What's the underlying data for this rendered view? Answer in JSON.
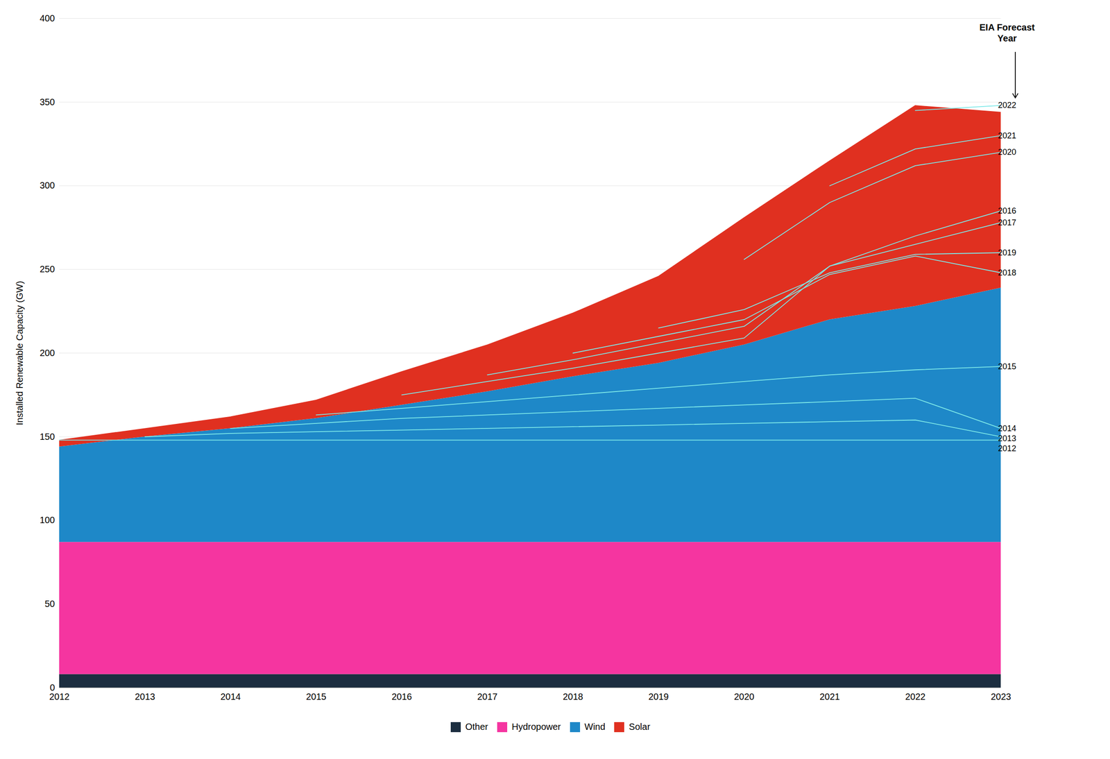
{
  "chart_data": {
    "type": "area",
    "stacked": true,
    "x": [
      2012,
      2013,
      2014,
      2015,
      2016,
      2017,
      2018,
      2019,
      2020,
      2021,
      2022,
      2023
    ],
    "series": [
      {
        "name": "Other",
        "type": "area",
        "color": "#1c2e40",
        "values": [
          8,
          8,
          8,
          8,
          8,
          8,
          8,
          8,
          8,
          8,
          8,
          8
        ]
      },
      {
        "name": "Hydropower",
        "type": "area",
        "color": "#f535a0",
        "values": [
          79,
          79,
          79,
          79,
          79,
          79,
          79,
          79,
          79,
          79,
          79,
          79
        ]
      },
      {
        "name": "Wind",
        "type": "area",
        "color": "#1e88c8",
        "values": [
          57,
          63,
          68,
          74,
          82,
          90,
          99,
          107,
          118,
          133,
          141,
          152
        ]
      },
      {
        "name": "Solar",
        "type": "area",
        "color": "#e03020",
        "values": [
          4,
          5,
          7,
          11,
          20,
          28,
          38,
          52,
          76,
          95,
          120,
          105
        ]
      },
      {
        "name": "2012",
        "type": "line",
        "color": "#7de8e8",
        "values": [
          148,
          148,
          148,
          148,
          148,
          148,
          148,
          148,
          148,
          148,
          148,
          148
        ]
      },
      {
        "name": "2013",
        "type": "line",
        "color": "#7de8e8",
        "values": [
          null,
          150,
          152,
          153,
          154,
          155,
          156,
          157,
          158,
          159,
          160,
          150
        ]
      },
      {
        "name": "2014",
        "type": "line",
        "color": "#7de8e8",
        "values": [
          null,
          null,
          155,
          158,
          161,
          163,
          165,
          167,
          169,
          171,
          173,
          155
        ]
      },
      {
        "name": "2015",
        "type": "line",
        "color": "#7de8e8",
        "values": [
          null,
          null,
          null,
          163,
          167,
          171,
          175,
          179,
          183,
          187,
          190,
          192
        ]
      },
      {
        "name": "2016",
        "type": "line",
        "color": "#7de8e8",
        "values": [
          null,
          null,
          null,
          null,
          175,
          183,
          191,
          200,
          209,
          252,
          270,
          285
        ]
      },
      {
        "name": "2017",
        "type": "line",
        "color": "#7de8e8",
        "values": [
          null,
          null,
          null,
          null,
          null,
          187,
          196,
          206,
          216,
          252,
          265,
          278
        ]
      },
      {
        "name": "2018",
        "type": "line",
        "color": "#7de8e8",
        "values": [
          null,
          null,
          null,
          null,
          null,
          null,
          200,
          210,
          220,
          247,
          258,
          248
        ]
      },
      {
        "name": "2019",
        "type": "line",
        "color": "#7de8e8",
        "values": [
          null,
          null,
          null,
          null,
          null,
          null,
          null,
          215,
          226,
          248,
          259,
          260
        ]
      },
      {
        "name": "2020",
        "type": "line",
        "color": "#7de8e8",
        "values": [
          null,
          null,
          null,
          null,
          null,
          null,
          null,
          null,
          256,
          290,
          312,
          320
        ]
      },
      {
        "name": "2021",
        "type": "line",
        "color": "#7de8e8",
        "values": [
          null,
          null,
          null,
          null,
          null,
          null,
          null,
          null,
          null,
          300,
          322,
          330
        ]
      },
      {
        "name": "2022",
        "type": "line",
        "color": "#7de8e8",
        "values": [
          null,
          null,
          null,
          null,
          null,
          null,
          null,
          null,
          null,
          null,
          345,
          348
        ]
      }
    ],
    "ylabel": "Installed Renewable Capacity (GW)",
    "annotation": "EIA Forecast\nYear",
    "xlim": [
      2012,
      2023
    ],
    "xticks": [
      2012,
      2013,
      2014,
      2015,
      2016,
      2017,
      2018,
      2019,
      2020,
      2021,
      2022,
      2023
    ],
    "ylim": [
      0,
      400
    ],
    "yticks": [
      0,
      50,
      100,
      150,
      200,
      250,
      300,
      350,
      400
    ],
    "grid": true,
    "legend": "bottom"
  }
}
